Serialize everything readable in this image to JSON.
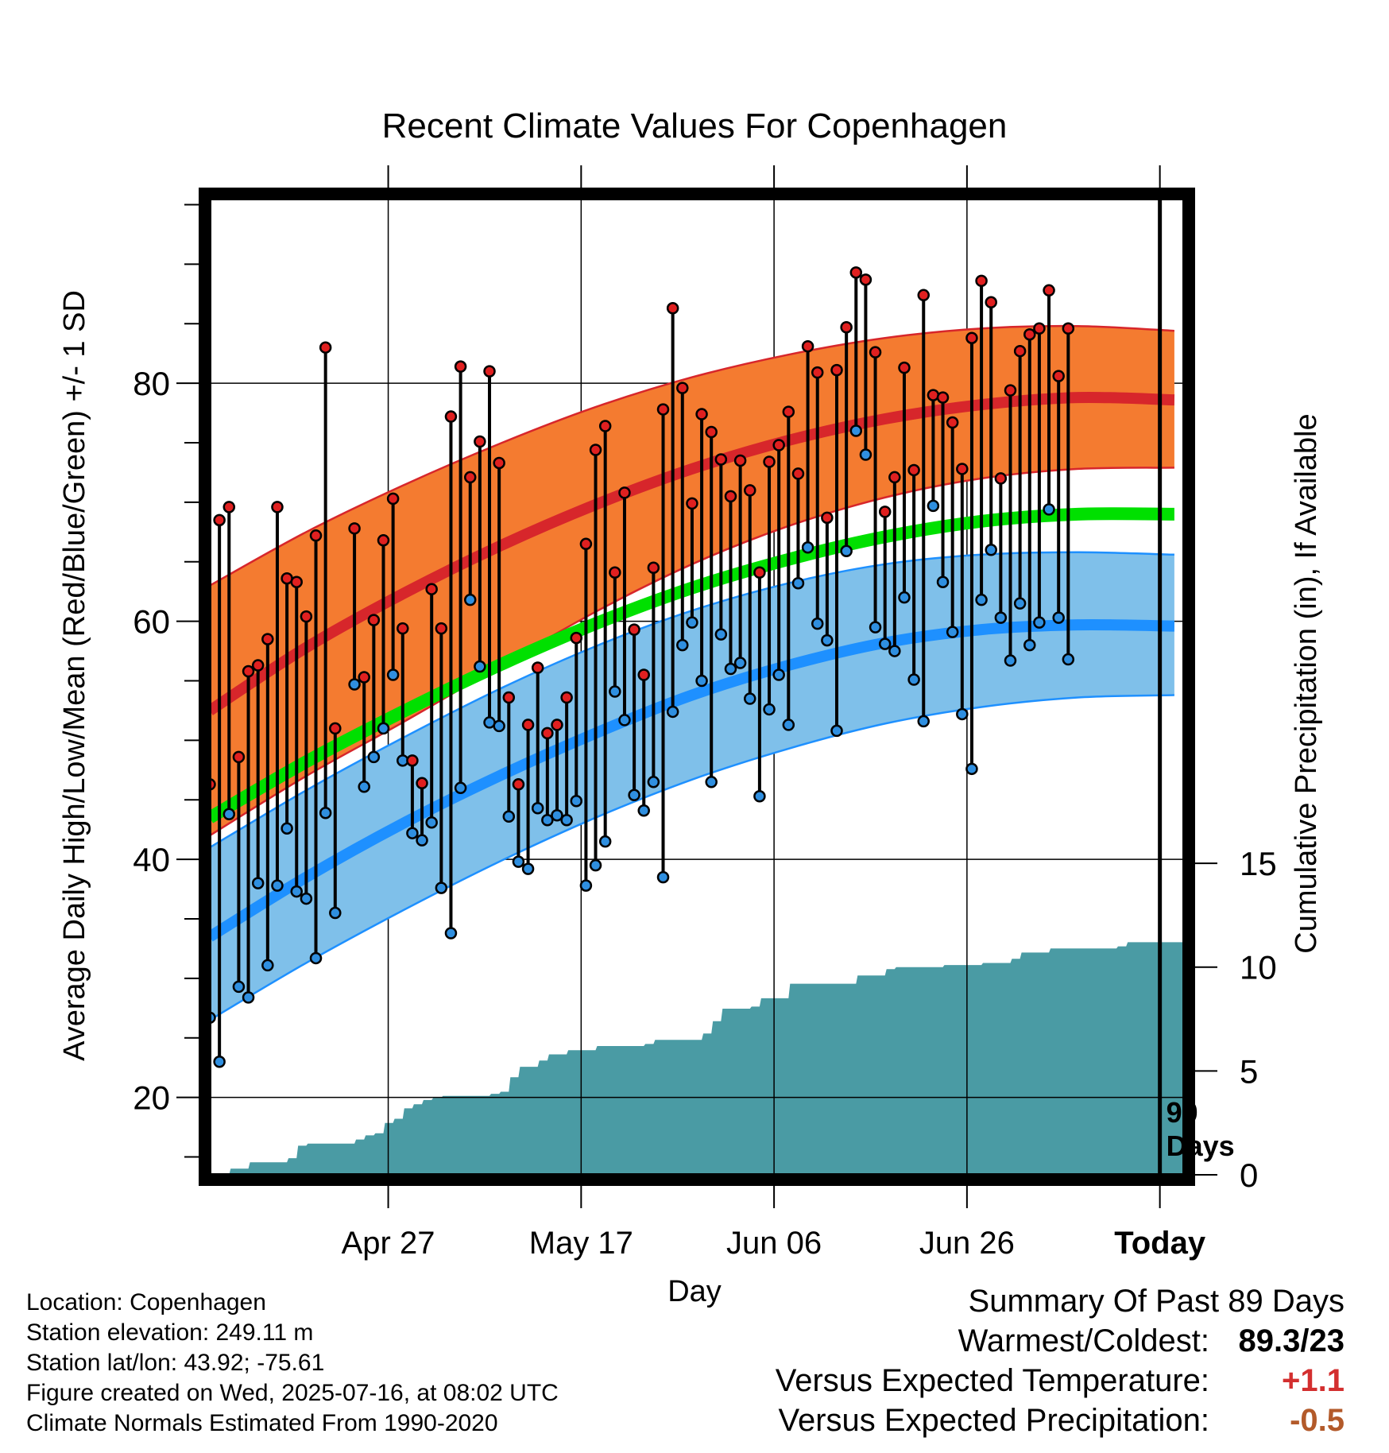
{
  "chart_data": {
    "type": "line",
    "title": "Recent Climate Values For Copenhagen",
    "xlabel": "Day",
    "ylabel": "Average Daily High/Low/Mean (Red/Blue/Green) +/- 1 SD",
    "y2label": "Cumulative Precipitation (in), If Available",
    "x_ticks": [
      "Apr 27",
      "May 17",
      "Jun 06",
      "Jun 26",
      "Today"
    ],
    "y_ticks": [
      20,
      40,
      60,
      80
    ],
    "y2_ticks": [
      0,
      5,
      10,
      15
    ],
    "ylim": [
      13.5,
      95.5
    ],
    "y2lim": [
      0,
      47
    ],
    "xlim": [
      -10,
      91
    ],
    "days_marker_label": "90\nDays",
    "colors": {
      "high": "#d7262b",
      "high_band": "#f47b30",
      "low": "#1e90ff",
      "low_band": "#7fc0ea",
      "mean": "#00e000",
      "precip": "#4a9ba4",
      "high_point": "#e02020",
      "low_point": "#2f8fe0"
    },
    "normals": {
      "days": [
        -10,
        0,
        10,
        20,
        30,
        40,
        50,
        60,
        70,
        80,
        90
      ],
      "high_mean": [
        52.5,
        57.8,
        62.3,
        66.3,
        69.8,
        72.8,
        75.2,
        77.0,
        78.2,
        78.8,
        78.6
      ],
      "high_sd_upper": [
        63.0,
        67.5,
        71.4,
        74.9,
        78.0,
        80.5,
        82.4,
        83.8,
        84.6,
        84.8,
        84.4
      ],
      "high_sd_lower": [
        42.0,
        47.0,
        51.5,
        56.2,
        60.8,
        64.8,
        68.0,
        70.4,
        72.0,
        72.8,
        72.9
      ],
      "mean": [
        43.5,
        48.2,
        52.4,
        56.3,
        59.8,
        62.8,
        65.2,
        67.1,
        68.4,
        69.0,
        69.0
      ],
      "low_mean": [
        33.5,
        38.5,
        43.0,
        47.0,
        50.6,
        53.8,
        56.3,
        58.2,
        59.3,
        59.7,
        59.6
      ],
      "low_sd_upper": [
        41.0,
        45.8,
        50.2,
        54.3,
        57.9,
        60.9,
        63.2,
        64.8,
        65.6,
        65.8,
        65.6
      ],
      "low_sd_lower": [
        26.5,
        31.3,
        35.7,
        39.8,
        43.5,
        46.7,
        49.3,
        51.4,
        52.8,
        53.6,
        53.8
      ]
    },
    "observed": {
      "day": [
        -10,
        -9,
        -8,
        -7,
        -6,
        -5,
        -4,
        -3,
        -2,
        -1,
        0,
        1,
        2,
        3,
        5,
        6,
        7,
        8,
        9,
        10,
        11,
        12,
        13,
        14,
        15,
        16,
        17,
        18,
        19,
        20,
        21,
        22,
        23,
        24,
        25,
        26,
        27,
        28,
        29,
        30,
        31,
        32,
        33,
        34,
        35,
        36,
        37,
        38,
        39,
        40,
        41,
        42,
        43,
        44,
        45,
        46,
        47,
        48,
        49,
        50,
        51,
        52,
        53,
        54,
        55,
        56,
        57,
        58,
        59,
        60,
        61,
        62,
        63,
        64,
        65,
        66,
        67,
        68,
        69,
        70,
        71,
        72,
        73,
        74,
        75,
        76,
        77,
        78,
        79
      ],
      "high": [
        46.3,
        68.5,
        69.6,
        48.6,
        55.8,
        56.3,
        58.5,
        69.6,
        63.6,
        63.3,
        60.4,
        67.2,
        83.0,
        51.0,
        67.8,
        55.3,
        60.1,
        66.8,
        70.3,
        59.4,
        48.3,
        46.4,
        62.7,
        59.4,
        77.2,
        81.4,
        72.1,
        75.1,
        81.0,
        73.3,
        53.6,
        46.3,
        51.3,
        56.1,
        50.6,
        51.3,
        53.6,
        58.6,
        66.5,
        74.4,
        76.4,
        64.1,
        70.8,
        59.3,
        55.5,
        64.5,
        77.8,
        86.3,
        79.6,
        69.9,
        77.4,
        75.9,
        73.6,
        70.5,
        73.5,
        71.0,
        64.1,
        73.4,
        74.8,
        77.6,
        72.4,
        83.1,
        80.9,
        68.7,
        81.1,
        84.7,
        89.3,
        88.7,
        82.6,
        69.2,
        72.1,
        81.3,
        72.7,
        87.4,
        79.0,
        78.8,
        76.7,
        72.8,
        83.8,
        88.6,
        86.8,
        72.0,
        79.4,
        82.7,
        84.1,
        84.6,
        87.8,
        80.6,
        84.6
      ],
      "low": [
        26.7,
        23.0,
        43.8,
        29.3,
        28.4,
        38.0,
        31.1,
        37.8,
        42.6,
        37.3,
        36.7,
        31.7,
        43.9,
        35.5,
        54.7,
        46.1,
        48.6,
        51.0,
        55.5,
        48.3,
        42.2,
        41.6,
        43.1,
        37.6,
        33.8,
        46.0,
        61.8,
        56.2,
        51.5,
        51.2,
        43.6,
        39.8,
        39.2,
        44.3,
        43.3,
        43.7,
        43.3,
        44.9,
        37.8,
        39.5,
        41.5,
        54.1,
        51.7,
        45.4,
        44.1,
        46.5,
        38.5,
        52.4,
        58.0,
        59.9,
        55.0,
        46.5,
        58.9,
        56.0,
        56.5,
        53.5,
        45.3,
        52.6,
        55.5,
        51.3,
        63.2,
        66.2,
        59.8,
        58.4,
        50.8,
        65.9,
        76.0,
        74.0,
        59.5,
        58.1,
        57.5,
        62.0,
        55.1,
        51.6,
        69.7,
        63.3,
        59.1,
        52.2,
        47.6,
        61.8,
        66.0,
        60.3,
        56.7,
        61.5,
        58.0,
        59.9,
        69.4,
        60.3,
        56.8
      ]
    },
    "precip": {
      "day": [
        -8,
        -6,
        -2,
        -1,
        0,
        1,
        5,
        6,
        7,
        8,
        9,
        10,
        11,
        12,
        13,
        14,
        15,
        19,
        20,
        21,
        22,
        23,
        24,
        25,
        27,
        30,
        35,
        36,
        40,
        41,
        42,
        43,
        46,
        47,
        50,
        57,
        60,
        61,
        66,
        70,
        71,
        73,
        74,
        77,
        84,
        85,
        89
      ],
      "cumulative": [
        0.3,
        0.6,
        0.8,
        1.4,
        1.5,
        1.5,
        1.7,
        1.9,
        2.0,
        2.5,
        2.7,
        3.2,
        3.4,
        3.6,
        3.7,
        3.8,
        3.8,
        3.9,
        4.0,
        4.7,
        5.2,
        5.2,
        5.5,
        5.8,
        6.0,
        6.2,
        6.3,
        6.5,
        6.5,
        6.8,
        7.4,
        8.0,
        8.1,
        8.5,
        9.2,
        9.6,
        9.9,
        10.0,
        10.1,
        10.2,
        10.2,
        10.4,
        10.7,
        10.9,
        11.0,
        11.2,
        11.2
      ]
    }
  },
  "info": {
    "location": "Location: Copenhagen",
    "elevation": "Station elevation: 249.11 m",
    "latlon": "Station lat/lon: 43.92; -75.61",
    "created": "Figure created on Wed, 2025-07-16, at 08:02 UTC",
    "normals": "Climate Normals Estimated From 1990-2020"
  },
  "summary": {
    "title": "Summary Of Past 89 Days",
    "warm_label": "Warmest/Coldest:",
    "warm_value": "89.3/23",
    "temp_label": "Versus Expected Temperature:",
    "temp_value": "+1.1",
    "temp_color": "#d32f2f",
    "precip_label": "Versus Expected Precipitation:",
    "precip_value": "-0.5",
    "precip_color": "#b35a2a"
  }
}
